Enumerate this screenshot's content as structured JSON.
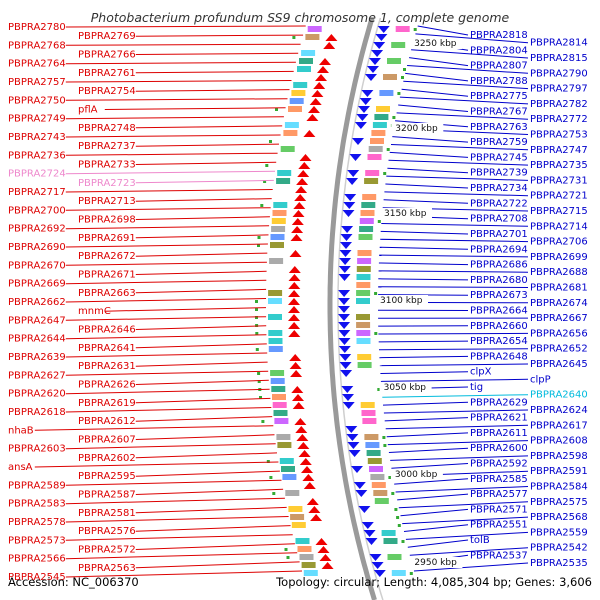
{
  "title": "Photobacterium profundum SS9 chromosome 1, complete genome",
  "footer": {
    "accession": "Accession: NC_006370",
    "summary": "Topology: circular; Length: 4,085,304 bp; Genes: 3,606"
  },
  "colors": {
    "left_label": "#dd0000",
    "right_label": "#0000cc",
    "pink_label": "#ee88cc",
    "cyan_label": "#00bbdd",
    "backbone": "#888888",
    "forward_arrow": "#ee0000",
    "reverse_arrow": "#1111ee"
  },
  "kbp_marks": [
    "3250 kbp",
    "3200 kbp",
    "3150 kbp",
    "3100 kbp",
    "3050 kbp",
    "3000 kbp",
    "2950 kbp"
  ],
  "left_genes": [
    {
      "name": "PBPRA2780",
      "tone": "red"
    },
    {
      "name": "PBPRA2769",
      "tone": "red"
    },
    {
      "name": "PBPRA2768",
      "tone": "red"
    },
    {
      "name": "PBPRA2766",
      "tone": "red"
    },
    {
      "name": "PBPRA2764",
      "tone": "red"
    },
    {
      "name": "PBPRA2761",
      "tone": "red"
    },
    {
      "name": "PBPRA2757",
      "tone": "red"
    },
    {
      "name": "PBPRA2754",
      "tone": "red"
    },
    {
      "name": "PBPRA2750",
      "tone": "red"
    },
    {
      "name": "pflA",
      "tone": "red"
    },
    {
      "name": "PBPRA2749",
      "tone": "red"
    },
    {
      "name": "PBPRA2748",
      "tone": "red"
    },
    {
      "name": "PBPRA2743",
      "tone": "red"
    },
    {
      "name": "PBPRA2737",
      "tone": "red"
    },
    {
      "name": "PBPRA2736",
      "tone": "red"
    },
    {
      "name": "PBPRA2733",
      "tone": "red"
    },
    {
      "name": "PBPRA2724",
      "tone": "pink"
    },
    {
      "name": "PBPRA2723",
      "tone": "pink"
    },
    {
      "name": "PBPRA2717",
      "tone": "red"
    },
    {
      "name": "PBPRA2713",
      "tone": "red"
    },
    {
      "name": "PBPRA2700",
      "tone": "red"
    },
    {
      "name": "PBPRA2698",
      "tone": "red"
    },
    {
      "name": "PBPRA2692",
      "tone": "red"
    },
    {
      "name": "PBPRA2691",
      "tone": "red"
    },
    {
      "name": "PBPRA2690",
      "tone": "red"
    },
    {
      "name": "PBPRA2672",
      "tone": "red"
    },
    {
      "name": "PBPRA2670",
      "tone": "red"
    },
    {
      "name": "PBPRA2671",
      "tone": "red"
    },
    {
      "name": "PBPRA2669",
      "tone": "red"
    },
    {
      "name": "PBPRA2663",
      "tone": "red"
    },
    {
      "name": "PBPRA2662",
      "tone": "red"
    },
    {
      "name": "mnmC",
      "tone": "red"
    },
    {
      "name": "PBPRA2647",
      "tone": "red"
    },
    {
      "name": "PBPRA2646",
      "tone": "red"
    },
    {
      "name": "PBPRA2644",
      "tone": "red"
    },
    {
      "name": "PBPRA2641",
      "tone": "red"
    },
    {
      "name": "PBPRA2639",
      "tone": "red"
    },
    {
      "name": "PBPRA2631",
      "tone": "red"
    },
    {
      "name": "PBPRA2627",
      "tone": "red"
    },
    {
      "name": "PBPRA2626",
      "tone": "red"
    },
    {
      "name": "PBPRA2620",
      "tone": "red"
    },
    {
      "name": "PBPRA2619",
      "tone": "red"
    },
    {
      "name": "PBPRA2618",
      "tone": "red"
    },
    {
      "name": "PBPRA2612",
      "tone": "red"
    },
    {
      "name": "nhaB",
      "tone": "red"
    },
    {
      "name": "PBPRA2607",
      "tone": "red"
    },
    {
      "name": "PBPRA2603",
      "tone": "red"
    },
    {
      "name": "PBPRA2602",
      "tone": "red"
    },
    {
      "name": "ansA",
      "tone": "red"
    },
    {
      "name": "PBPRA2595",
      "tone": "red"
    },
    {
      "name": "PBPRA2589",
      "tone": "red"
    },
    {
      "name": "PBPRA2587",
      "tone": "red"
    },
    {
      "name": "PBPRA2583",
      "tone": "red"
    },
    {
      "name": "PBPRA2581",
      "tone": "red"
    },
    {
      "name": "PBPRA2578",
      "tone": "red"
    },
    {
      "name": "PBPRA2576",
      "tone": "red"
    },
    {
      "name": "PBPRA2573",
      "tone": "red"
    },
    {
      "name": "PBPRA2572",
      "tone": "red"
    },
    {
      "name": "PBPRA2566",
      "tone": "red"
    },
    {
      "name": "PBPRA2563",
      "tone": "red"
    },
    {
      "name": "PBPRA2545",
      "tone": "red"
    }
  ],
  "right_genes": [
    {
      "name": "PBPRA2818",
      "tone": "blue"
    },
    {
      "name": "PBPRA2814",
      "tone": "blue"
    },
    {
      "name": "PBPRA2804",
      "tone": "blue"
    },
    {
      "name": "PBPRA2815",
      "tone": "blue"
    },
    {
      "name": "PBPRA2807",
      "tone": "blue"
    },
    {
      "name": "PBPRA2790",
      "tone": "blue"
    },
    {
      "name": "PBPRA2788",
      "tone": "blue"
    },
    {
      "name": "PBPRA2797",
      "tone": "blue"
    },
    {
      "name": "PBPRA2775",
      "tone": "blue"
    },
    {
      "name": "PBPRA2782",
      "tone": "blue"
    },
    {
      "name": "PBPRA2767",
      "tone": "blue"
    },
    {
      "name": "PBPRA2772",
      "tone": "blue"
    },
    {
      "name": "PBPRA2763",
      "tone": "blue"
    },
    {
      "name": "PBPRA2753",
      "tone": "blue"
    },
    {
      "name": "PBPRA2759",
      "tone": "blue"
    },
    {
      "name": "PBPRA2747",
      "tone": "blue"
    },
    {
      "name": "PBPRA2745",
      "tone": "blue"
    },
    {
      "name": "PBPRA2735",
      "tone": "blue"
    },
    {
      "name": "PBPRA2739",
      "tone": "blue"
    },
    {
      "name": "PBPRA2731",
      "tone": "blue"
    },
    {
      "name": "PBPRA2734",
      "tone": "blue"
    },
    {
      "name": "PBPRA2721",
      "tone": "blue"
    },
    {
      "name": "PBPRA2722",
      "tone": "blue"
    },
    {
      "name": "PBPRA2715",
      "tone": "blue"
    },
    {
      "name": "PBPRA2708",
      "tone": "blue"
    },
    {
      "name": "PBPRA2714",
      "tone": "blue"
    },
    {
      "name": "PBPRA2701",
      "tone": "blue"
    },
    {
      "name": "PBPRA2706",
      "tone": "blue"
    },
    {
      "name": "PBPRA2694",
      "tone": "blue"
    },
    {
      "name": "PBPRA2699",
      "tone": "blue"
    },
    {
      "name": "PBPRA2686",
      "tone": "blue"
    },
    {
      "name": "PBPRA2688",
      "tone": "blue"
    },
    {
      "name": "PBPRA2680",
      "tone": "blue"
    },
    {
      "name": "PBPRA2681",
      "tone": "blue"
    },
    {
      "name": "PBPRA2673",
      "tone": "blue"
    },
    {
      "name": "PBPRA2674",
      "tone": "blue"
    },
    {
      "name": "PBPRA2664",
      "tone": "blue"
    },
    {
      "name": "PBPRA2667",
      "tone": "blue"
    },
    {
      "name": "PBPRA2660",
      "tone": "blue"
    },
    {
      "name": "PBPRA2656",
      "tone": "blue"
    },
    {
      "name": "PBPRA2654",
      "tone": "blue"
    },
    {
      "name": "PBPRA2652",
      "tone": "blue"
    },
    {
      "name": "PBPRA2648",
      "tone": "blue"
    },
    {
      "name": "PBPRA2645",
      "tone": "blue"
    },
    {
      "name": "clpX",
      "tone": "blue"
    },
    {
      "name": "clpP",
      "tone": "blue"
    },
    {
      "name": "tig",
      "tone": "blue"
    },
    {
      "name": "PBPRA2640",
      "tone": "cyan"
    },
    {
      "name": "PBPRA2629",
      "tone": "blue"
    },
    {
      "name": "PBPRA2624",
      "tone": "blue"
    },
    {
      "name": "PBPRA2621",
      "tone": "blue"
    },
    {
      "name": "PBPRA2617",
      "tone": "blue"
    },
    {
      "name": "PBPRA2611",
      "tone": "blue"
    },
    {
      "name": "PBPRA2608",
      "tone": "blue"
    },
    {
      "name": "PBPRA2600",
      "tone": "blue"
    },
    {
      "name": "PBPRA2598",
      "tone": "blue"
    },
    {
      "name": "PBPRA2592",
      "tone": "blue"
    },
    {
      "name": "PBPRA2591",
      "tone": "blue"
    },
    {
      "name": "PBPRA2585",
      "tone": "blue"
    },
    {
      "name": "PBPRA2584",
      "tone": "blue"
    },
    {
      "name": "PBPRA2577",
      "tone": "blue"
    },
    {
      "name": "PBPRA2575",
      "tone": "blue"
    },
    {
      "name": "PBPRA2571",
      "tone": "blue"
    },
    {
      "name": "PBPRA2568",
      "tone": "blue"
    },
    {
      "name": "PBPRA2551",
      "tone": "blue"
    },
    {
      "name": "PBPRA2559",
      "tone": "blue"
    },
    {
      "name": "tolB",
      "tone": "blue"
    },
    {
      "name": "PBPRA2542",
      "tone": "blue"
    },
    {
      "name": "PBPRA2537",
      "tone": "blue"
    },
    {
      "name": "PBPRA2535",
      "tone": "blue"
    }
  ]
}
